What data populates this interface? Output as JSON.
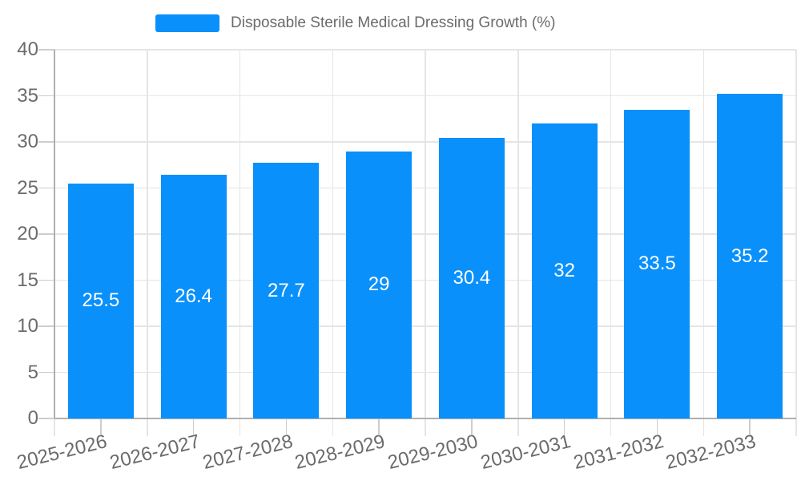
{
  "chart_data": {
    "type": "bar",
    "title": "Disposable Sterile Medical Dressing Growth (%)",
    "legend": {
      "entries": [
        "Disposable Sterile Medical Dressing Growth (%)"
      ],
      "position": "top"
    },
    "categories": [
      "2025-2026",
      "2026-2027",
      "2027-2028",
      "2028-2029",
      "2029-2030",
      "2030-2031",
      "2031-2032",
      "2032-2033"
    ],
    "values": [
      25.5,
      26.4,
      27.7,
      29,
      30.4,
      32,
      33.5,
      35.2
    ],
    "xlabel": "",
    "ylabel": "",
    "ylim": [
      0,
      40
    ],
    "ytick_step": 5,
    "yticks": [
      0,
      5,
      10,
      15,
      20,
      25,
      30,
      35,
      40
    ],
    "grid": "on",
    "value_labels_position": "inside-center",
    "xlabel_rotation_deg": -14,
    "colors": {
      "bar": "#0990FB",
      "value_label": "#FFFFFF",
      "axis_label_text": "#6B6B6B",
      "grid_line": "#E5E5E5",
      "axis_line": "#AFAFAF",
      "tick_line": "#CDCDCD",
      "background": "#FFFFFF"
    }
  }
}
